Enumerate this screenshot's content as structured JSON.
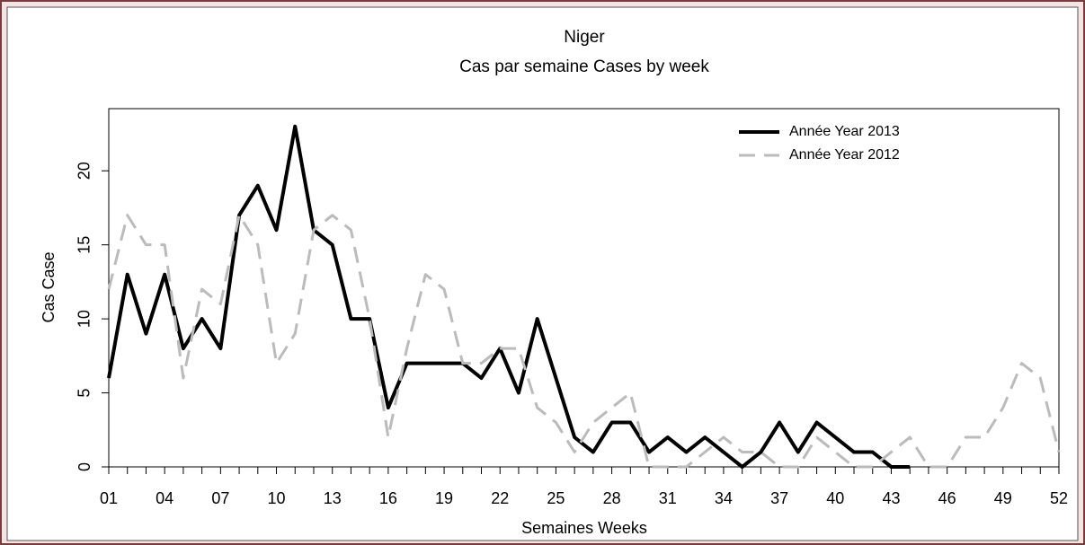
{
  "chart_data": {
    "type": "line",
    "title": "Niger",
    "subtitle": "Cas par semaine Cases by week",
    "x_label": "Semaines Weeks",
    "y_label": "Cas Case",
    "categories": [
      "01",
      null,
      null,
      "04",
      null,
      null,
      "07",
      null,
      null,
      "10",
      null,
      null,
      "13",
      null,
      null,
      "16",
      null,
      null,
      "19",
      null,
      null,
      "22",
      null,
      null,
      "25",
      null,
      null,
      "28",
      null,
      null,
      "31",
      null,
      null,
      "34",
      null,
      null,
      "37",
      null,
      null,
      "40",
      null,
      null,
      "43",
      null,
      null,
      "46",
      null,
      null,
      "49",
      null,
      null,
      "52"
    ],
    "series": [
      {
        "name": "Année Year 2013",
        "color": "#000000",
        "dash": false,
        "values": [
          6,
          13,
          9,
          13,
          8,
          10,
          8,
          17,
          19,
          16,
          23,
          16,
          15,
          10,
          10,
          4,
          7,
          7,
          7,
          7,
          6,
          8,
          5,
          10,
          6,
          2,
          1,
          3,
          3,
          1,
          2,
          1,
          2,
          1,
          0,
          1,
          3,
          1,
          3,
          2,
          1,
          1,
          0,
          0,
          null,
          null,
          null,
          null,
          null,
          null,
          null,
          null
        ]
      },
      {
        "name": "Année Year 2012",
        "color": "#bbbbbb",
        "dash": true,
        "values": [
          12,
          17,
          15,
          15,
          6,
          12,
          11,
          17,
          15,
          7,
          9,
          16,
          17,
          16,
          10,
          2,
          8,
          13,
          12,
          7,
          7,
          8,
          8,
          4,
          3,
          1,
          3,
          4,
          5,
          0,
          0,
          0,
          1,
          2,
          1,
          1,
          0,
          0,
          2,
          1,
          0,
          0,
          1,
          2,
          0,
          0,
          2,
          2,
          4,
          7,
          6,
          1
        ]
      }
    ],
    "ylim": [
      0,
      24.2
    ],
    "yticks": [
      0,
      5,
      10,
      15,
      20
    ],
    "legend": "top-right"
  }
}
